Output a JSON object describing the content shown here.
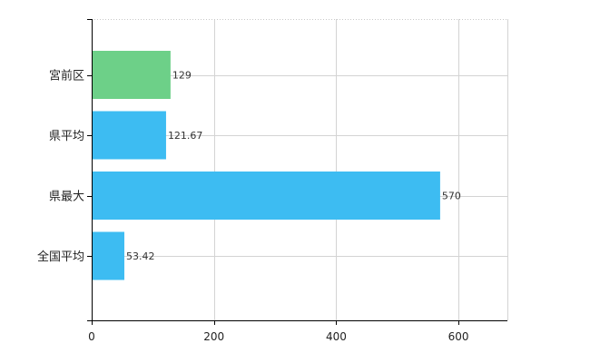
{
  "chart_data": {
    "type": "bar",
    "orientation": "horizontal",
    "categories": [
      "宮前区",
      "県平均",
      "県最大",
      "全国平均"
    ],
    "values": [
      129,
      121.67,
      570,
      53.42
    ],
    "value_labels": [
      "129",
      "121.67",
      "570",
      "53.42"
    ],
    "bar_colors": [
      "#6dd088",
      "#3dbcf2",
      "#3dbcf2",
      "#3dbcf2"
    ],
    "xlim": [
      0,
      680
    ],
    "x_ticks": [
      0,
      200,
      400,
      600
    ],
    "x_tick_labels": [
      "0",
      "200",
      "400",
      "600"
    ],
    "grid": true,
    "legend": "none"
  }
}
